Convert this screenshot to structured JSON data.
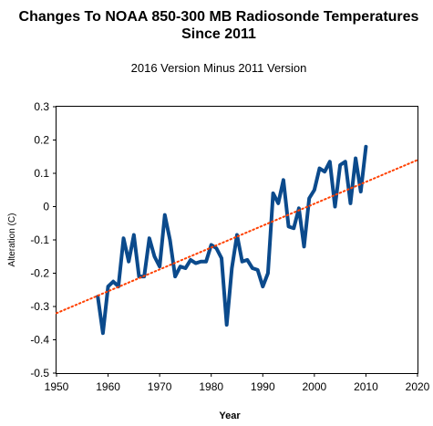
{
  "chart_data": {
    "type": "line",
    "title_line1": "Changes To NOAA 850-300 MB Radiosonde Temperatures",
    "title_line2": "Since 2011",
    "subtitle": "2016 Version Minus 2011 Version",
    "xlabel": "Year",
    "ylabel": "Alteration (C)",
    "xlim": [
      1950,
      2020
    ],
    "ylim": [
      -0.5,
      0.3
    ],
    "xticks": [
      "1950",
      "1960",
      "1970",
      "1980",
      "1990",
      "2000",
      "2010",
      "2020"
    ],
    "yticks": [
      "0.3",
      "0.2",
      "0.1",
      "0",
      "-0.1",
      "-0.2",
      "-0.3",
      "-0.4",
      "-0.5"
    ],
    "grid": false,
    "legend": "none",
    "series": [
      {
        "color": "#0b4a8c",
        "x": [
          1958,
          1959,
          1960,
          1961,
          1962,
          1963,
          1964,
          1965,
          1966,
          1967,
          1968,
          1969,
          1970,
          1971,
          1972,
          1973,
          1974,
          1975,
          1976,
          1977,
          1978,
          1979,
          1980,
          1981,
          1982,
          1983,
          1984,
          1985,
          1986,
          1987,
          1988,
          1989,
          1990,
          1991,
          1992,
          1993,
          1994,
          1995,
          1996,
          1997,
          1998,
          1999,
          2000,
          2001,
          2002,
          2003,
          2004,
          2005,
          2006,
          2007,
          2008,
          2009,
          2010
        ],
        "y": [
          -0.27,
          -0.38,
          -0.24,
          -0.225,
          -0.24,
          -0.095,
          -0.165,
          -0.085,
          -0.21,
          -0.21,
          -0.095,
          -0.15,
          -0.18,
          -0.025,
          -0.1,
          -0.21,
          -0.18,
          -0.185,
          -0.16,
          -0.17,
          -0.165,
          -0.165,
          -0.115,
          -0.125,
          -0.155,
          -0.355,
          -0.185,
          -0.085,
          -0.165,
          -0.16,
          -0.185,
          -0.19,
          -0.24,
          -0.2,
          0.04,
          0.01,
          0.08,
          -0.06,
          -0.065,
          -0.005,
          -0.12,
          0.025,
          0.05,
          0.115,
          0.105,
          0.135,
          0.0,
          0.125,
          0.135,
          0.01,
          0.145,
          0.045,
          0.18
        ]
      },
      {
        "color": "#ff4000",
        "style": "dotted",
        "x": [
          1950,
          2020
        ],
        "y": [
          -0.32,
          0.14
        ]
      }
    ]
  }
}
